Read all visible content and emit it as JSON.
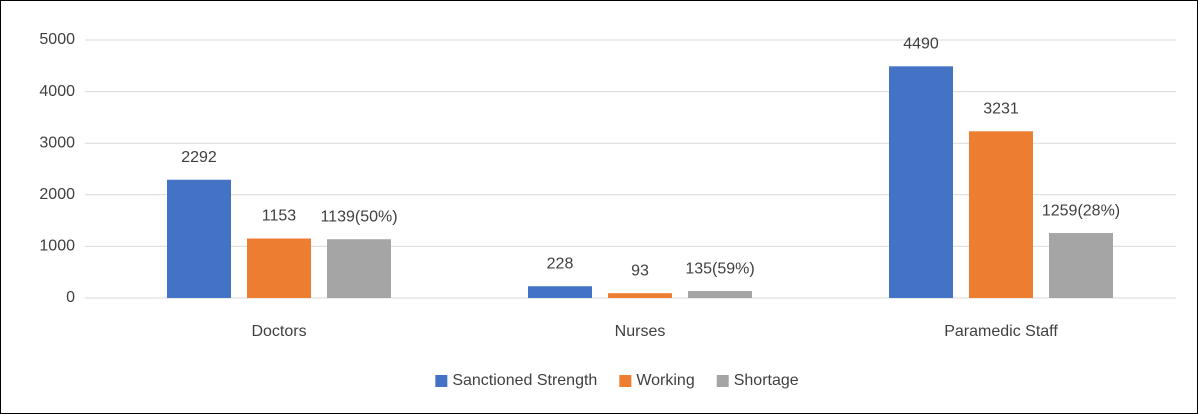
{
  "chart_data": {
    "type": "bar",
    "categories": [
      "Doctors",
      "Nurses",
      "Paramedic Staff"
    ],
    "series": [
      {
        "name": "Sanctioned Strength",
        "color": "#4472c4",
        "values": [
          2292,
          228,
          4490
        ]
      },
      {
        "name": "Working",
        "color": "#ed7d31",
        "values": [
          1153,
          93,
          3231
        ]
      },
      {
        "name": "Shortage",
        "color": "#a5a5a5",
        "values": [
          1139,
          135,
          1259
        ],
        "value_labels": [
          "1139(50%)",
          "135(59%)",
          "1259(28%)"
        ]
      }
    ],
    "ylim": [
      0,
      5000
    ],
    "yticks": [
      0,
      1000,
      2000,
      3000,
      4000,
      5000
    ],
    "grid": true,
    "legend": "bottom"
  }
}
